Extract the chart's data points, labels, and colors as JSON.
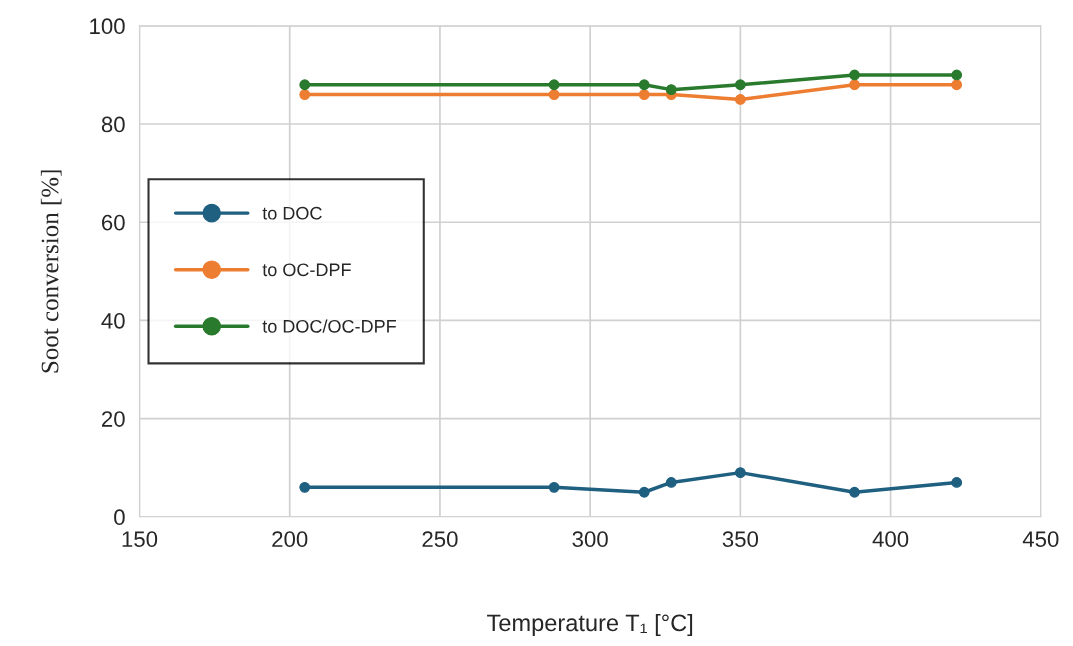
{
  "chart_data": {
    "type": "line",
    "xlabel": "Temperature T₁ [°C]",
    "ylabel": "Soot conversion [%]",
    "x": [
      205,
      288,
      318,
      327,
      350,
      388,
      422
    ],
    "series": [
      {
        "name": "to DOC",
        "color": "#1f5f80",
        "values": [
          6,
          6,
          5,
          7,
          9,
          5,
          7
        ]
      },
      {
        "name": "to OC-DPF",
        "color": "#ed7d31",
        "values": [
          86,
          86,
          86,
          86,
          85,
          88,
          88
        ]
      },
      {
        "name": "to DOC/OC-DPF",
        "color": "#2a7a2e",
        "values": [
          88,
          88,
          88,
          87,
          88,
          90,
          90
        ]
      }
    ],
    "xlim": [
      150,
      450
    ],
    "xticks": [
      150,
      200,
      250,
      300,
      350,
      400,
      450
    ],
    "ylim": [
      0,
      100
    ],
    "yticks": [
      0,
      20,
      40,
      60,
      80,
      100
    ],
    "grid": true,
    "legend": "center left",
    "marker": "circle",
    "line_style": "solid"
  }
}
